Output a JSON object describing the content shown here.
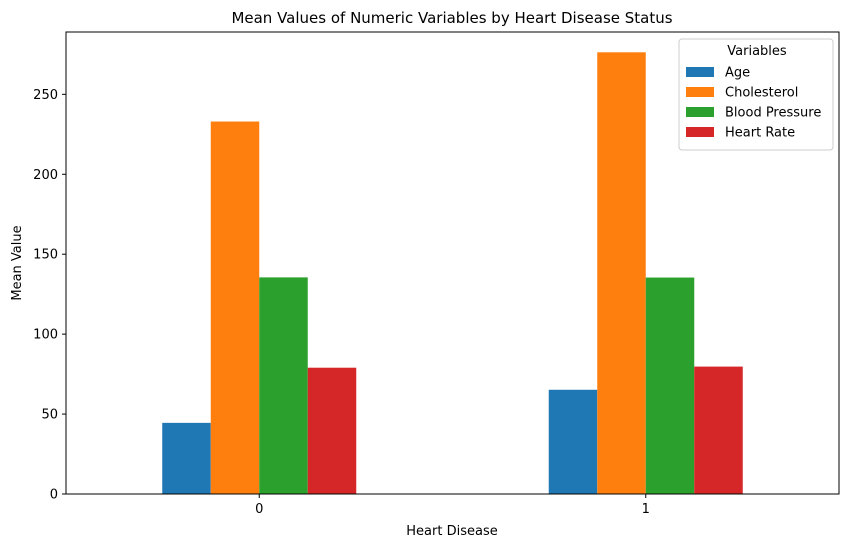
{
  "chart_data": {
    "type": "bar",
    "title": "Mean Values of Numeric Variables by Heart Disease Status",
    "xlabel": "Heart Disease",
    "ylabel": "Mean Value",
    "categories": [
      "0",
      "1"
    ],
    "ylim": [
      0,
      289
    ],
    "yticks": [
      0,
      50,
      100,
      150,
      200,
      250
    ],
    "grid": false,
    "legend": {
      "title": "Variables",
      "placement": "top-right"
    },
    "series": [
      {
        "name": "Age",
        "color": "#1f77b4",
        "values": [
          44.5,
          65.2
        ]
      },
      {
        "name": "Cholesterol",
        "color": "#ff7f0e",
        "values": [
          233.0,
          276.3
        ]
      },
      {
        "name": "Blood Pressure",
        "color": "#2ca02c",
        "values": [
          135.5,
          135.4
        ]
      },
      {
        "name": "Heart Rate",
        "color": "#d62728",
        "values": [
          79.0,
          79.7
        ]
      }
    ]
  }
}
